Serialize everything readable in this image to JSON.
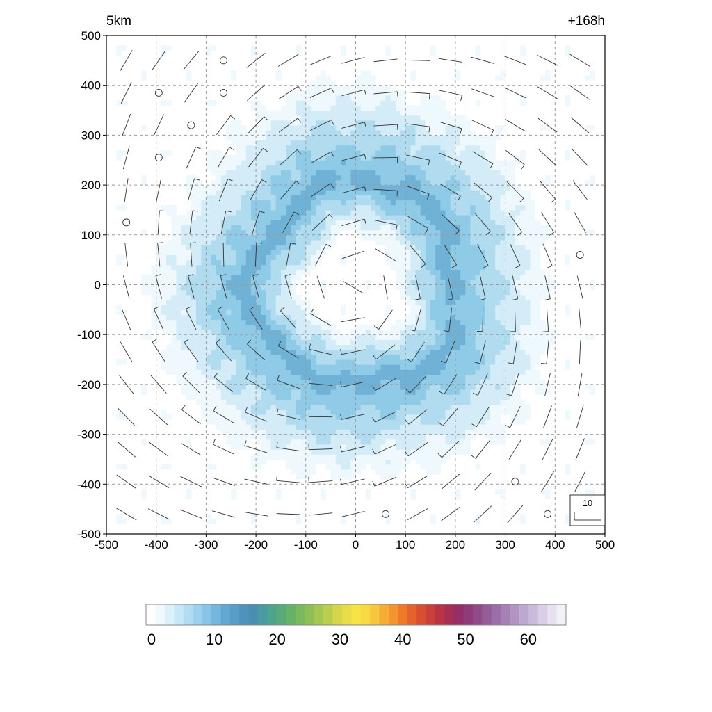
{
  "chart_data": {
    "type": "heatmap",
    "title_left": "5km",
    "title_right": "+168h",
    "xlabel": "",
    "ylabel": "",
    "xlim": [
      -500,
      500
    ],
    "ylim": [
      -500,
      500
    ],
    "x_ticks": [
      -500,
      -400,
      -300,
      -200,
      -100,
      0,
      100,
      200,
      300,
      400,
      500
    ],
    "y_ticks": [
      -500,
      -400,
      -300,
      -200,
      -100,
      0,
      100,
      200,
      300,
      400,
      500
    ],
    "x_tick_labels": [
      "-500",
      "-400",
      "-300",
      "-200",
      "-100",
      "0",
      "100",
      "200",
      "300",
      "400",
      "500"
    ],
    "y_tick_labels": [
      "-500",
      "-400",
      "-300",
      "-200",
      "-100",
      "0",
      "100",
      "200",
      "300",
      "400",
      "500"
    ],
    "grid": true,
    "grid_style": "dashed",
    "field": {
      "description_units": "",
      "pattern": "annulus",
      "center": [
        0,
        0
      ],
      "inner_eye_radius": 120,
      "peak_radius": 200,
      "outer_radius": 420,
      "max_value": 13,
      "colors": [
        "#ffffff",
        "#eef8fd",
        "#d3ecf7",
        "#b1dcf0",
        "#8fcae6",
        "#6fb2d6"
      ]
    },
    "wind_barbs": {
      "spacing": 50,
      "reference": {
        "value": "10",
        "label": "10",
        "position": "bottom-right"
      }
    },
    "calm_markers": [
      [
        -265,
        450
      ],
      [
        -395,
        385
      ],
      [
        -265,
        385
      ],
      [
        -330,
        320
      ],
      [
        -395,
        255
      ],
      [
        -460,
        125
      ],
      [
        450,
        60
      ],
      [
        320,
        -395
      ],
      [
        60,
        -460
      ],
      [
        385,
        -460
      ]
    ],
    "colorbar": {
      "orientation": "horizontal",
      "min": 0,
      "max": 66,
      "ticks": [
        0,
        10,
        20,
        30,
        40,
        50,
        60
      ],
      "tick_labels": [
        "0",
        "10",
        "20",
        "30",
        "40",
        "50",
        "60"
      ],
      "colors": [
        "#ffffff",
        "#f0f9fd",
        "#ddf1fa",
        "#c8e7f6",
        "#b2dcf1",
        "#9dd0ec",
        "#88c4e6",
        "#74b6dd",
        "#62a8d3",
        "#579dc8",
        "#4f93bd",
        "#4a8fb2",
        "#4a9aa1",
        "#4ea38c",
        "#58ab78",
        "#67b26a",
        "#79b95f",
        "#8ebf57",
        "#a4c752",
        "#bccd4d",
        "#d3d54a",
        "#e8dd47",
        "#f6e346",
        "#f8d843",
        "#f7c53e",
        "#f6ad36",
        "#f2942f",
        "#ed7a2b",
        "#e4632d",
        "#d84e32",
        "#c93f3c",
        "#b93447",
        "#a62f56",
        "#962f66",
        "#8f3b77",
        "#8f4b88",
        "#955c98",
        "#9c6ea7",
        "#a681b5",
        "#b194c2",
        "#bda8cf",
        "#cabbdb",
        "#d8cee6",
        "#e6e0f0",
        "#f3f0f8"
      ]
    }
  }
}
